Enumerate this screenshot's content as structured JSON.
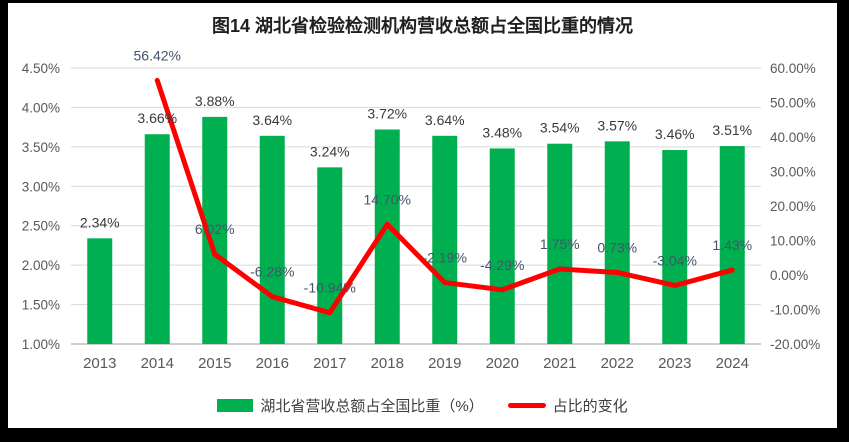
{
  "title": "图14 湖北省检验检测机构营收总额占全国比重的情况",
  "colors": {
    "bar": "#00B050",
    "line": "#FF0000",
    "gridline": "#D9D9D9",
    "axis_line": "#CFCFCF",
    "tick_text": "#595959",
    "bar_label_text": "#3a3a3a",
    "line_label_text": "#44546A",
    "frame": "#000000",
    "canvas": "#FFFFFF"
  },
  "legend": {
    "items": [
      {
        "label": "湖北省营收总额占全国比重（%）",
        "swatch": "bar",
        "color": "#00B050"
      },
      {
        "label": "占比的变化",
        "swatch": "line",
        "color": "#FF0000"
      }
    ]
  },
  "chart_data": {
    "type": "bar+line",
    "title": "图14 湖北省检验检测机构营收总额占全国比重的情况",
    "categories": [
      "2013",
      "2014",
      "2015",
      "2016",
      "2017",
      "2018",
      "2019",
      "2020",
      "2021",
      "2022",
      "2023",
      "2024"
    ],
    "series": [
      {
        "name": "湖北省营收总额占全国比重（%）",
        "chart_type": "bar",
        "axis": "left",
        "color": "#00B050",
        "values": [
          2.34,
          3.66,
          3.88,
          3.64,
          3.24,
          3.72,
          3.64,
          3.48,
          3.54,
          3.57,
          3.46,
          3.51
        ],
        "labels": [
          "2.34%",
          "3.66%",
          "3.88%",
          "3.64%",
          "3.24%",
          "3.72%",
          "3.64%",
          "3.48%",
          "3.54%",
          "3.57%",
          "3.46%",
          "3.51%"
        ]
      },
      {
        "name": "占比的变化",
        "chart_type": "line",
        "axis": "right",
        "color": "#FF0000",
        "start_index": 1,
        "values": [
          56.42,
          6.02,
          -6.28,
          -10.94,
          14.7,
          -2.19,
          -4.29,
          1.75,
          0.73,
          -3.04,
          1.43
        ],
        "labels": [
          "56.42%",
          "6.02%",
          "-6.28%",
          "-10.94%",
          "14.70%",
          "-2.19%",
          "-4.29%",
          "1.75%",
          "0.73%",
          "-3.04%",
          "1.43%"
        ]
      }
    ],
    "left_axis": {
      "min": 1.0,
      "max": 4.5,
      "step": 0.5,
      "tick_labels": [
        "4.50%",
        "4.00%",
        "3.50%",
        "3.00%",
        "2.50%",
        "2.00%",
        "1.50%",
        "1.00%"
      ]
    },
    "right_axis": {
      "min": -20,
      "max": 60,
      "step": 10,
      "tick_labels": [
        "60.00%",
        "50.00%",
        "40.00%",
        "30.00%",
        "20.00%",
        "10.00%",
        "0.00%",
        "-10.00%",
        "-20.00%"
      ]
    },
    "grid": true,
    "legend_position": "bottom"
  }
}
